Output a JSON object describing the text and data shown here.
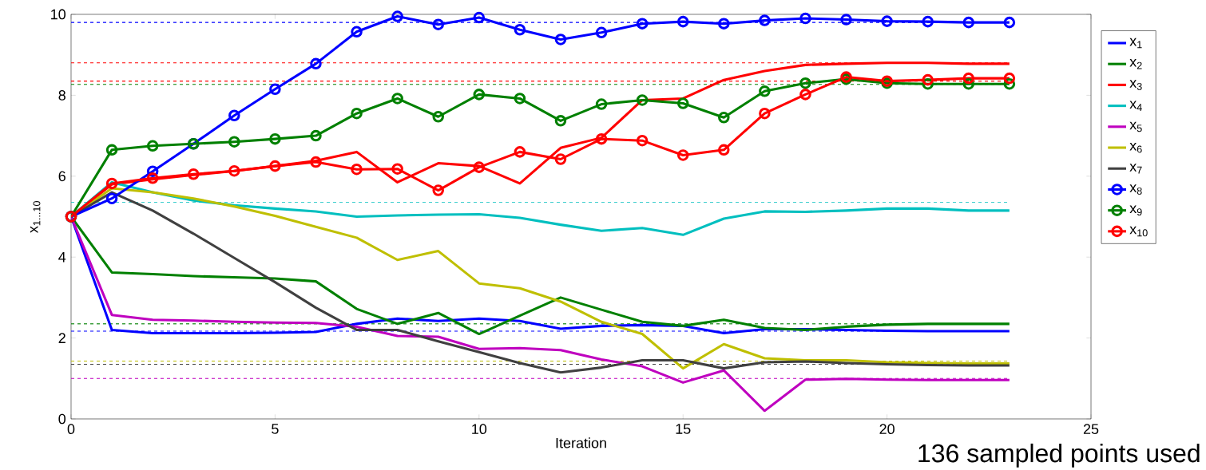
{
  "chart_data": {
    "type": "line",
    "xlabel": "Iteration",
    "ylabel": "x$_{1...10}$",
    "x": [
      0,
      1,
      2,
      3,
      4,
      5,
      6,
      7,
      8,
      9,
      10,
      11,
      12,
      13,
      14,
      15,
      16,
      17,
      18,
      19,
      20,
      21,
      22,
      23
    ],
    "xlim": [
      0,
      25
    ],
    "xticks": [
      0,
      5,
      10,
      15,
      20,
      25
    ],
    "ylim": [
      0,
      10
    ],
    "yticks": [
      0,
      2,
      4,
      6,
      8,
      10
    ],
    "legend": "right",
    "grid": false,
    "series": [
      {
        "name": "x$_{1}$",
        "color": "#0000ff",
        "marker": "none",
        "values": [
          5,
          2.2,
          2.12,
          2.12,
          2.12,
          2.13,
          2.15,
          2.35,
          2.48,
          2.42,
          2.48,
          2.42,
          2.23,
          2.3,
          2.32,
          2.3,
          2.12,
          2.22,
          2.22,
          2.2,
          2.18,
          2.17,
          2.17,
          2.17
        ]
      },
      {
        "name": "x$_{2}$",
        "color": "#008000",
        "marker": "none",
        "values": [
          5,
          3.62,
          3.58,
          3.53,
          3.5,
          3.47,
          3.4,
          2.72,
          2.35,
          2.62,
          2.1,
          2.55,
          3.0,
          2.7,
          2.4,
          2.3,
          2.45,
          2.25,
          2.2,
          2.28,
          2.33,
          2.35,
          2.35,
          2.35
        ]
      },
      {
        "name": "x$_{3}$",
        "color": "#ff0000",
        "marker": "none",
        "values": [
          5,
          5.8,
          5.92,
          6.03,
          6.13,
          6.25,
          6.38,
          6.6,
          5.85,
          6.32,
          6.25,
          5.82,
          6.7,
          6.95,
          7.88,
          7.92,
          8.38,
          8.6,
          8.75,
          8.78,
          8.8,
          8.8,
          8.78,
          8.78
        ]
      },
      {
        "name": "x$_{4}$",
        "color": "#00bfbf",
        "marker": "none",
        "values": [
          5,
          5.85,
          5.6,
          5.4,
          5.28,
          5.2,
          5.13,
          5.0,
          5.03,
          5.05,
          5.06,
          4.97,
          4.8,
          4.65,
          4.72,
          4.55,
          4.95,
          5.13,
          5.12,
          5.15,
          5.2,
          5.2,
          5.15,
          5.15
        ]
      },
      {
        "name": "x$_{5}$",
        "color": "#bf00bf",
        "marker": "none",
        "values": [
          5,
          2.57,
          2.45,
          2.43,
          2.4,
          2.38,
          2.37,
          2.28,
          2.05,
          2.03,
          1.73,
          1.75,
          1.7,
          1.47,
          1.3,
          0.9,
          1.2,
          0.2,
          0.97,
          0.99,
          0.97,
          0.96,
          0.96,
          0.96
        ]
      },
      {
        "name": "x$_{6}$",
        "color": "#bfbf00",
        "marker": "none",
        "values": [
          5,
          5.7,
          5.6,
          5.45,
          5.25,
          5.02,
          4.75,
          4.48,
          3.93,
          4.15,
          3.35,
          3.23,
          2.9,
          2.4,
          2.1,
          1.25,
          1.85,
          1.5,
          1.45,
          1.45,
          1.4,
          1.38,
          1.37,
          1.37
        ]
      },
      {
        "name": "x$_{7}$",
        "color": "#404040",
        "marker": "none",
        "values": [
          5,
          5.6,
          5.15,
          4.58,
          3.98,
          3.38,
          2.75,
          2.2,
          2.2,
          1.92,
          1.65,
          1.38,
          1.15,
          1.27,
          1.45,
          1.45,
          1.25,
          1.4,
          1.42,
          1.38,
          1.35,
          1.33,
          1.32,
          1.32
        ]
      },
      {
        "name": "x$_{8}$",
        "color": "#0000ff",
        "marker": "circle",
        "values": [
          5,
          5.45,
          6.12,
          6.8,
          7.5,
          8.15,
          8.78,
          9.57,
          9.95,
          9.75,
          9.92,
          9.62,
          9.38,
          9.55,
          9.77,
          9.82,
          9.77,
          9.85,
          9.9,
          9.87,
          9.83,
          9.82,
          9.8,
          9.8
        ]
      },
      {
        "name": "x$_{9}$",
        "color": "#008000",
        "marker": "circle",
        "values": [
          5,
          6.65,
          6.75,
          6.8,
          6.85,
          6.92,
          7.0,
          7.55,
          7.92,
          7.47,
          8.02,
          7.92,
          7.37,
          7.78,
          7.88,
          7.8,
          7.45,
          8.1,
          8.3,
          8.4,
          8.3,
          8.28,
          8.28,
          8.28
        ]
      },
      {
        "name": "x$_{10}$",
        "color": "#ff0000",
        "marker": "circle",
        "values": [
          5,
          5.82,
          5.95,
          6.05,
          6.13,
          6.25,
          6.35,
          6.17,
          6.18,
          5.65,
          6.22,
          6.6,
          6.42,
          6.92,
          6.88,
          6.52,
          6.65,
          7.55,
          8.02,
          8.45,
          8.35,
          8.38,
          8.42,
          8.42
        ]
      }
    ],
    "ref_lines": [
      {
        "axis": "y",
        "value": 9.8,
        "color": "#0000ff",
        "line_style": "dashed"
      },
      {
        "axis": "y",
        "value": 8.8,
        "color": "#ff0000",
        "line_style": "dashed"
      },
      {
        "axis": "y",
        "value": 8.35,
        "color": "#ff0000",
        "line_style": "dashed"
      },
      {
        "axis": "y",
        "value": 8.27,
        "color": "#008000",
        "line_style": "dashed"
      },
      {
        "axis": "y",
        "value": 5.35,
        "color": "#00bfbf",
        "line_style": "dashed"
      },
      {
        "axis": "y",
        "value": 2.35,
        "color": "#008000",
        "line_style": "dashed"
      },
      {
        "axis": "y",
        "value": 2.17,
        "color": "#0000ff",
        "line_style": "dashed"
      },
      {
        "axis": "y",
        "value": 1.43,
        "color": "#bfbf00",
        "line_style": "dashed"
      },
      {
        "axis": "y",
        "value": 1.35,
        "color": "#404040",
        "line_style": "dashed"
      },
      {
        "axis": "y",
        "value": 1.0,
        "color": "#bf00bf",
        "line_style": "dashed"
      }
    ],
    "annotations": [
      "136 sampled points used"
    ]
  }
}
